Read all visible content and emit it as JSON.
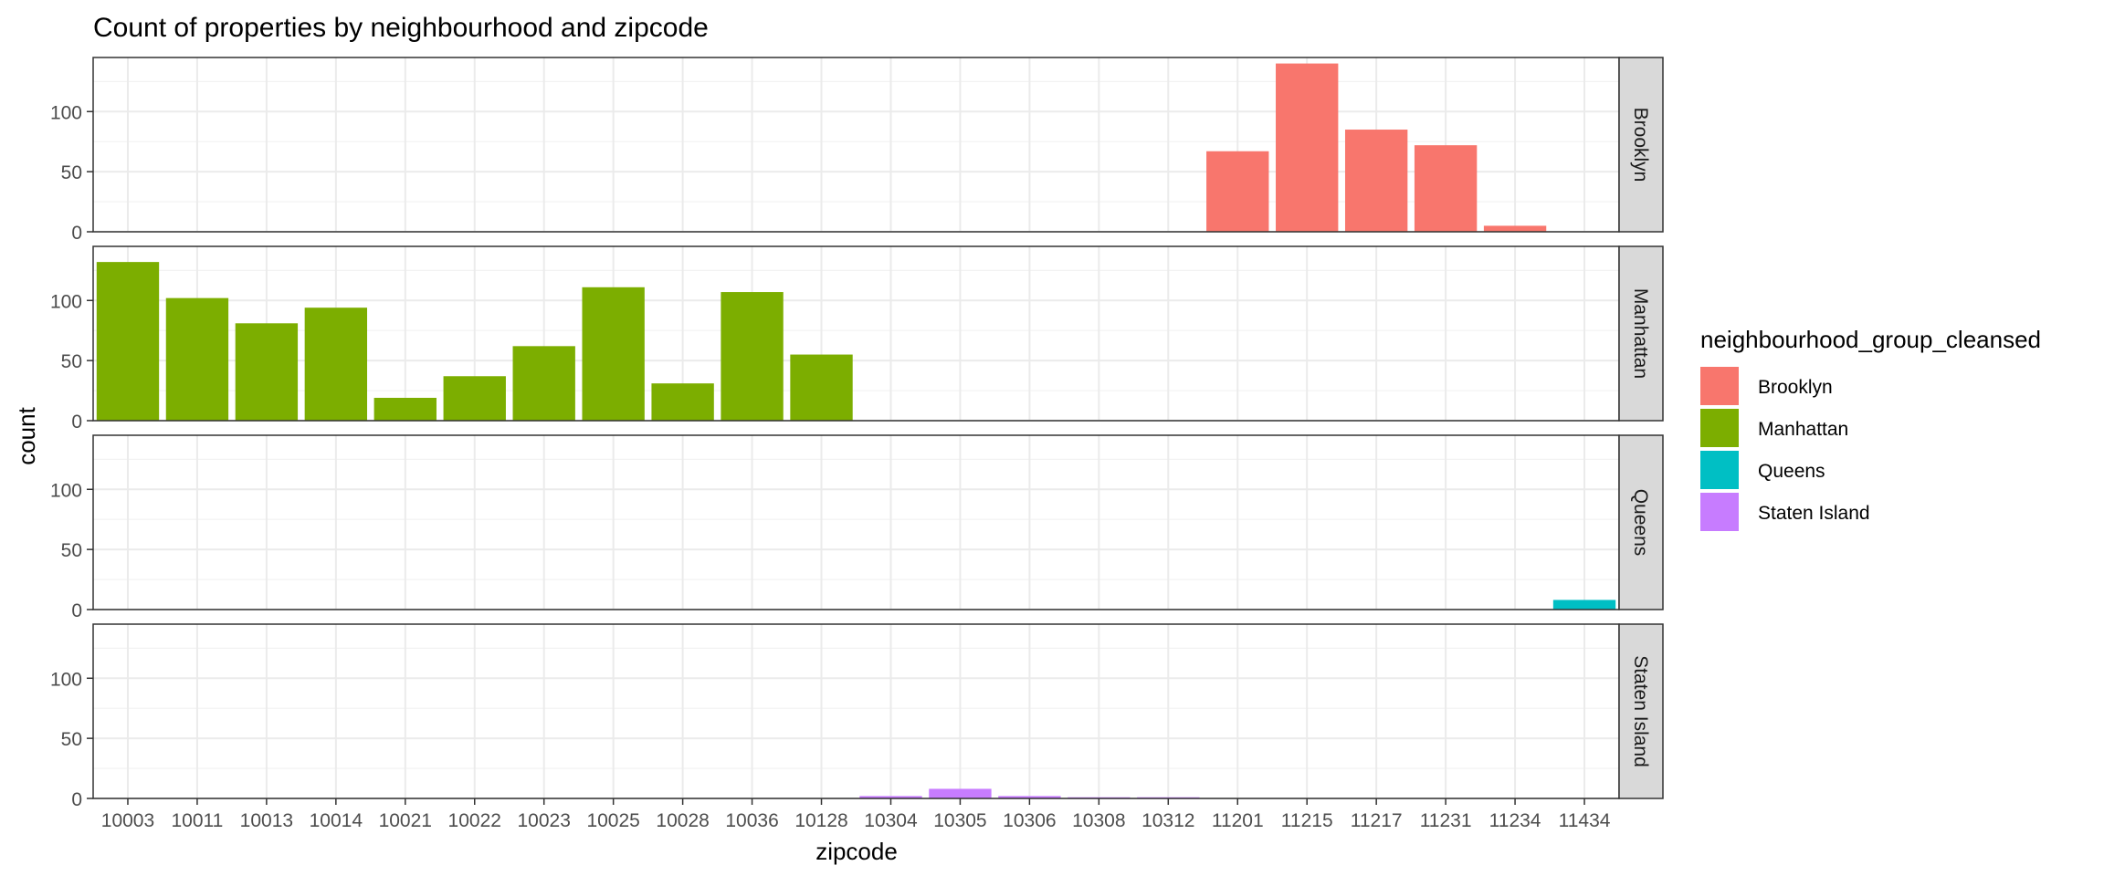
{
  "chart_data": {
    "type": "bar",
    "title": "Count of properties by neighbourhood and zipcode",
    "xlabel": "zipcode",
    "ylabel": "count",
    "ylim": [
      0,
      145
    ],
    "yticks": [
      0,
      50,
      100
    ],
    "grid": true,
    "facet": "rows",
    "legend": {
      "title": "neighbourhood_group_cleansed",
      "placement": "right",
      "entries": [
        "Brooklyn",
        "Manhattan",
        "Queens",
        "Staten Island"
      ]
    },
    "colors": {
      "Brooklyn": "#F8766D",
      "Manhattan": "#7CAE00",
      "Queens": "#00BFC4",
      "Staten Island": "#C77CFF"
    },
    "categories": [
      "10003",
      "10011",
      "10013",
      "10014",
      "10021",
      "10022",
      "10023",
      "10025",
      "10028",
      "10036",
      "10128",
      "10304",
      "10305",
      "10306",
      "10308",
      "10312",
      "11201",
      "11215",
      "11217",
      "11231",
      "11234",
      "11434"
    ],
    "series": [
      {
        "name": "Brooklyn",
        "values": [
          0,
          0,
          0,
          0,
          0,
          0,
          0,
          0,
          0,
          0,
          0,
          0,
          0,
          0,
          0,
          0,
          67,
          140,
          85,
          72,
          5,
          0
        ]
      },
      {
        "name": "Manhattan",
        "values": [
          132,
          102,
          81,
          94,
          19,
          37,
          62,
          111,
          31,
          107,
          55,
          0,
          0,
          0,
          0,
          0,
          0,
          0,
          0,
          0,
          0,
          0
        ]
      },
      {
        "name": "Queens",
        "values": [
          0,
          0,
          0,
          0,
          0,
          0,
          0,
          0,
          0,
          0,
          0,
          0,
          0,
          0,
          0,
          0,
          0,
          0,
          0,
          0,
          0,
          8
        ]
      },
      {
        "name": "Staten Island",
        "values": [
          0,
          0,
          0,
          0,
          0,
          0,
          0,
          0,
          0,
          0,
          0,
          2,
          8,
          2,
          1,
          1,
          0,
          0,
          0,
          0,
          0,
          0
        ]
      }
    ]
  }
}
